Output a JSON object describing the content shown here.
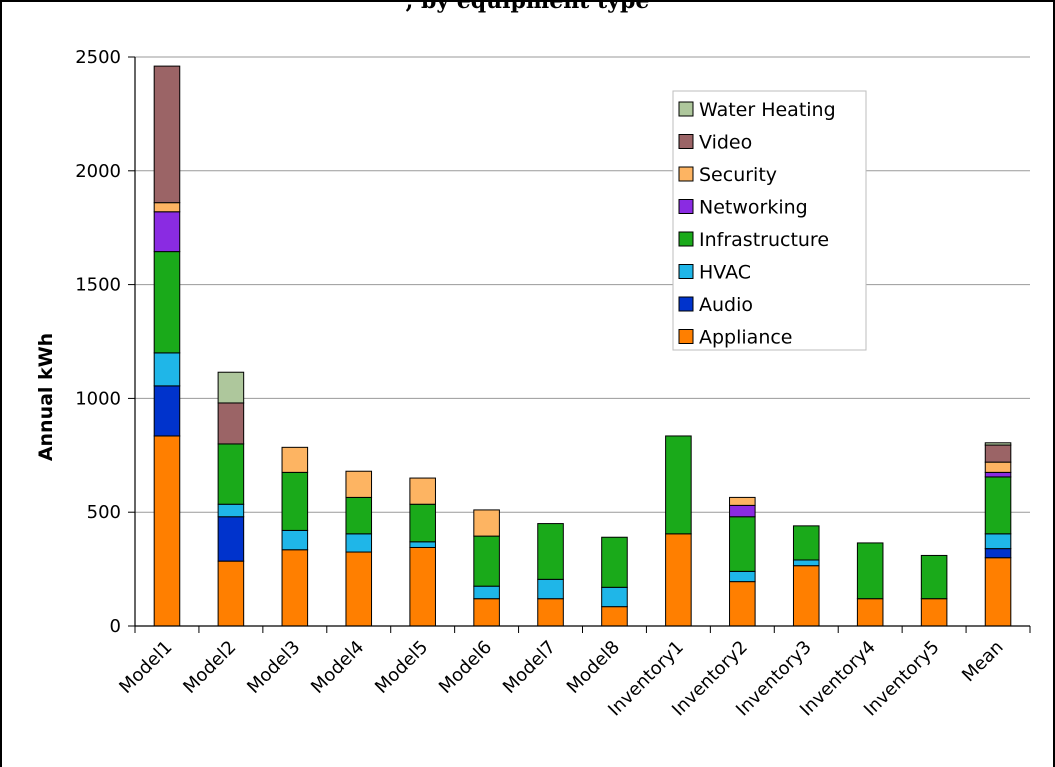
{
  "chart_data": {
    "type": "bar",
    "stacked": true,
    "title": ", by equipment type",
    "ylabel": "Annual kWh",
    "xlabel": "",
    "ylim": [
      0,
      2500
    ],
    "yticks": [
      0,
      500,
      1000,
      1500,
      2000,
      2500
    ],
    "grid": true,
    "legend_position": "top-right",
    "categories": [
      "Model1",
      "Model2",
      "Model3",
      "Model4",
      "Model5",
      "Model6",
      "Model7",
      "Model8",
      "Inventory1",
      "Inventory2",
      "Inventory3",
      "Inventory4",
      "Inventory5",
      "Mean"
    ],
    "series": [
      {
        "name": "Appliance",
        "color": "#ff7f00",
        "values": [
          835,
          285,
          335,
          325,
          345,
          120,
          120,
          85,
          405,
          195,
          265,
          120,
          120,
          300
        ]
      },
      {
        "name": "Audio",
        "color": "#0033cc",
        "values": [
          220,
          195,
          0,
          0,
          0,
          0,
          0,
          0,
          0,
          0,
          0,
          0,
          0,
          40
        ]
      },
      {
        "name": "HVAC",
        "color": "#1fb6e8",
        "values": [
          145,
          55,
          85,
          80,
          25,
          55,
          85,
          85,
          0,
          45,
          25,
          0,
          0,
          65
        ]
      },
      {
        "name": "Infrastructure",
        "color": "#1aaa1a",
        "values": [
          445,
          265,
          255,
          160,
          165,
          220,
          245,
          220,
          430,
          240,
          150,
          245,
          190,
          250
        ]
      },
      {
        "name": "Networking",
        "color": "#8a2be2",
        "values": [
          175,
          0,
          0,
          0,
          0,
          0,
          0,
          0,
          0,
          50,
          0,
          0,
          0,
          20
        ]
      },
      {
        "name": "Security",
        "color": "#fdb462",
        "values": [
          40,
          0,
          110,
          115,
          115,
          115,
          0,
          0,
          0,
          35,
          0,
          0,
          0,
          45
        ]
      },
      {
        "name": "Video",
        "color": "#9b6466",
        "values": [
          600,
          180,
          0,
          0,
          0,
          0,
          0,
          0,
          0,
          0,
          0,
          0,
          0,
          75
        ]
      },
      {
        "name": "Water Heating",
        "color": "#aec79c",
        "values": [
          0,
          135,
          0,
          0,
          0,
          0,
          0,
          0,
          0,
          0,
          0,
          0,
          0,
          10
        ]
      }
    ]
  }
}
